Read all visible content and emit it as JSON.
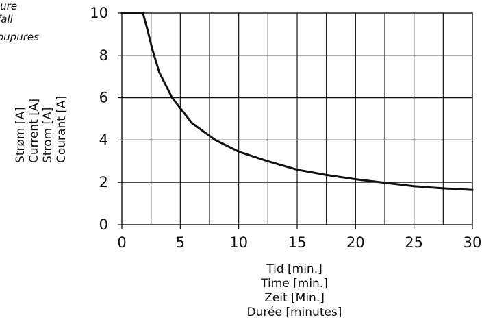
{
  "partial_text": [
    "lure",
    "fall",
    "oupures"
  ],
  "chart_data": {
    "type": "line",
    "title": "",
    "xlabel": [
      "Tid [min.]",
      "Time [min.]",
      "Zeit [Min.]",
      "Durée [minutes]"
    ],
    "ylabel": [
      "Strøm [A]",
      "Current [A]",
      "Strom [A]",
      "Courant  [A]"
    ],
    "xlim": [
      0,
      30
    ],
    "ylim": [
      0,
      10
    ],
    "x_ticks": [
      0,
      5,
      10,
      15,
      20,
      25,
      30
    ],
    "y_ticks": [
      0,
      2,
      4,
      6,
      8,
      10
    ],
    "grid": true,
    "x_grid_step": 2.5,
    "series": [
      {
        "x": [
          0,
          1.8,
          2.2,
          2.6,
          3.2,
          4.3,
          6.0,
          8.0,
          10.0,
          12.5,
          15.0,
          17.5,
          20.0,
          22.5,
          25.0,
          27.5,
          30.0
        ],
        "y": [
          10,
          10,
          9.2,
          8.3,
          7.2,
          6.0,
          4.8,
          4.0,
          3.45,
          3.0,
          2.6,
          2.35,
          2.15,
          1.98,
          1.82,
          1.72,
          1.64
        ]
      }
    ],
    "colors": {
      "line": "#111111",
      "grid": "#111111"
    }
  }
}
